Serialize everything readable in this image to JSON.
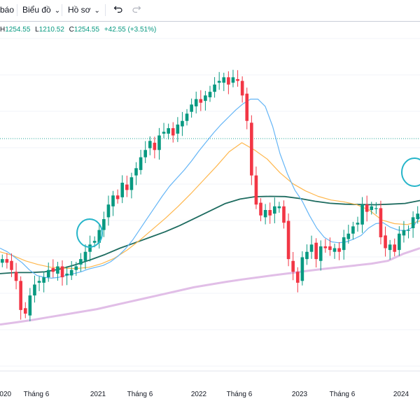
{
  "toolbar": {
    "item1": "báo",
    "item2": "Biểu đồ",
    "item3": "Hồ sơ",
    "chevron": "⌄",
    "undo_icon": "undo-icon",
    "redo_icon": "redo-icon"
  },
  "legend": {
    "h_label": "H",
    "h_value": "1254.55",
    "l_label": "L",
    "l_value": "1210.52",
    "c_label": "C",
    "c_value": "1254.55",
    "change": "+42.55 (+3.51%)"
  },
  "colors": {
    "up": "#089981",
    "down": "#f23645",
    "ma_fast": "#64b5f6",
    "ma_mid": "#ffb74d",
    "ma_slow": "#1d6b5f",
    "ma_long": "#e1bee7",
    "highlight": "#26b5c9",
    "last_price": "#26a69a"
  },
  "chart_data": {
    "type": "candlestick",
    "x_labels": [
      "2020",
      "Tháng 6",
      "2021",
      "Tháng 6",
      "2022",
      "Tháng 6",
      "2023",
      "Tháng 6",
      "2024"
    ],
    "x_range": [
      "2020-01",
      "2024-03"
    ],
    "y_range": [
      500,
      1640
    ],
    "last_price": 1254.55,
    "candles_close": [
      1000,
      980,
      940,
      880,
      720,
      700,
      800,
      860,
      880,
      900,
      940,
      930,
      960,
      900,
      920,
      940,
      960,
      1000,
      1040,
      1080,
      1100,
      1160,
      1220,
      1300,
      1350,
      1330,
      1420,
      1380,
      1450,
      1500,
      1560,
      1600,
      1650,
      1600,
      1680,
      1700,
      1720,
      1680,
      1740,
      1760,
      1800,
      1850,
      1880,
      1860,
      1900,
      1920,
      1960,
      1980,
      2000,
      1960,
      2000,
      1980,
      1900,
      1760,
      1460,
      1300,
      1240,
      1270,
      1240,
      1290,
      1290,
      1200,
      1000,
      930,
      870,
      1010,
      1040,
      1080,
      1000,
      1070,
      1060,
      1050,
      1060,
      1040,
      1120,
      1140,
      1180,
      1200,
      1300,
      1260,
      1290,
      1280,
      1120,
      1060,
      1080,
      1040,
      1140,
      1160,
      1160,
      1230,
      1250
    ],
    "ma_fast": [
      1060,
      1040,
      1010,
      980,
      940,
      910,
      900,
      895,
      900,
      910,
      920,
      930,
      945,
      955,
      965,
      985,
      1015,
      1055,
      1105,
      1165,
      1225,
      1285,
      1345,
      1400,
      1445,
      1490,
      1540,
      1595,
      1645,
      1695,
      1740,
      1780,
      1820,
      1855,
      1880,
      1880,
      1840,
      1730,
      1580,
      1470,
      1380,
      1320,
      1240,
      1170,
      1120,
      1095,
      1090,
      1095,
      1110,
      1130,
      1170,
      1195,
      1200,
      1175,
      1160,
      1155,
      1175,
      1230
    ],
    "ma_mid": [
      1040,
      1020,
      990,
      970,
      955,
      950,
      948,
      955,
      975,
      1005,
      1050,
      1105,
      1165,
      1225,
      1290,
      1360,
      1435,
      1510,
      1590,
      1640,
      1600,
      1550,
      1475,
      1415,
      1375,
      1345,
      1325,
      1315,
      1300,
      1270,
      1215,
      1195,
      1190,
      1210
    ],
    "ma_slow": [
      920,
      926,
      926,
      930,
      945,
      968,
      995,
      1025,
      1060,
      1090,
      1120,
      1150,
      1185,
      1225,
      1265,
      1305,
      1330,
      1343,
      1345,
      1344,
      1333,
      1318,
      1307,
      1302,
      1300,
      1299,
      1302,
      1306,
      1322
    ],
    "ma_long": [
      640,
      652,
      665,
      680,
      695,
      710,
      725,
      745,
      765,
      785,
      805,
      825,
      845,
      860,
      875,
      888,
      900,
      912,
      923,
      935,
      946,
      955,
      965,
      975,
      990,
      1030,
      1060
    ]
  }
}
